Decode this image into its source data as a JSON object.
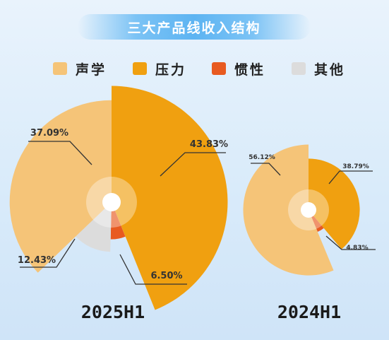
{
  "title": "三大产品线收入结构",
  "legend": [
    {
      "label": "声学",
      "color": "#f5c478"
    },
    {
      "label": "压力",
      "color": "#f0a010"
    },
    {
      "label": "惯性",
      "color": "#e85a20"
    },
    {
      "label": "其他",
      "color": "#dcdcdc"
    }
  ],
  "chart_data": [
    {
      "type": "pie",
      "title": "2025H1",
      "categories": [
        "声学",
        "压力",
        "惯性",
        "其他"
      ],
      "values": [
        37.09,
        43.83,
        6.5,
        12.43
      ],
      "labels": [
        "37.09%",
        "43.83%",
        "6.50%",
        "12.43%"
      ]
    },
    {
      "type": "pie",
      "title": "2024H1",
      "categories": [
        "声学",
        "压力",
        "惯性"
      ],
      "values": [
        56.12,
        38.79,
        4.83
      ],
      "labels": [
        "56.12%",
        "38.79%",
        "4.83%"
      ]
    }
  ]
}
